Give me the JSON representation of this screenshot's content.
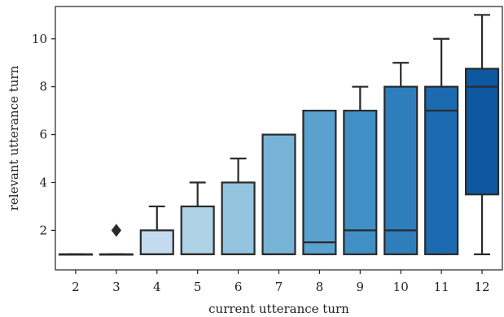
{
  "chart_data": {
    "type": "box",
    "title": "",
    "xlabel": "current utterance turn",
    "ylabel": "relevant utterance turn",
    "ylim": [
      0.35,
      11.35
    ],
    "yticks": [
      2,
      4,
      6,
      8,
      10
    ],
    "categories": [
      "2",
      "3",
      "4",
      "5",
      "6",
      "7",
      "8",
      "9",
      "10",
      "11",
      "12"
    ],
    "boxes": [
      {
        "whisker_low": 1,
        "q1": 1,
        "median": 1,
        "q3": 1,
        "whisker_high": 1,
        "outliers": []
      },
      {
        "whisker_low": 1,
        "q1": 1,
        "median": 1,
        "q3": 1,
        "whisker_high": 1,
        "outliers": [
          2
        ]
      },
      {
        "whisker_low": 1,
        "q1": 1,
        "median": 1,
        "q3": 2,
        "whisker_high": 3,
        "outliers": []
      },
      {
        "whisker_low": 1,
        "q1": 1,
        "median": 1,
        "q3": 3,
        "whisker_high": 4,
        "outliers": []
      },
      {
        "whisker_low": 1,
        "q1": 1,
        "median": 1,
        "q3": 4,
        "whisker_high": 5,
        "outliers": []
      },
      {
        "whisker_low": 1,
        "q1": 1,
        "median": 1,
        "q3": 6,
        "whisker_high": 6,
        "outliers": []
      },
      {
        "whisker_low": 1,
        "q1": 1,
        "median": 1.5,
        "q3": 7,
        "whisker_high": 7,
        "outliers": []
      },
      {
        "whisker_low": 1,
        "q1": 1,
        "median": 2,
        "q3": 7,
        "whisker_high": 8,
        "outliers": []
      },
      {
        "whisker_low": 1,
        "q1": 1,
        "median": 2,
        "q3": 8,
        "whisker_high": 9,
        "outliers": []
      },
      {
        "whisker_low": 1,
        "q1": 1,
        "median": 7,
        "q3": 8,
        "whisker_high": 10,
        "outliers": []
      },
      {
        "whisker_low": 1,
        "q1": 3.5,
        "median": 8,
        "q3": 8.75,
        "whisker_high": 11,
        "outliers": []
      }
    ],
    "colors": [
      "#dbe9f6",
      "#cfe1f2",
      "#c4daee",
      "#b0d2e7",
      "#94c4df",
      "#77b3d7",
      "#5aa1cf",
      "#4090c5",
      "#2e7ebc",
      "#1c6aaf",
      "#0e58a2"
    ],
    "line_color": "#2a2a2a",
    "grid": false
  }
}
